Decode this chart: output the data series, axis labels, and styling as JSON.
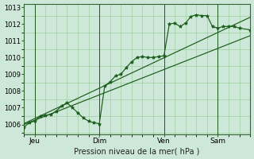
{
  "bg_color": "#cde8d8",
  "grid_color": "#99cc99",
  "line_color": "#1a5c1a",
  "marker_color": "#1a5c1a",
  "xlabel": "Pression niveau de la mer( hPa )",
  "xlim": [
    0,
    84
  ],
  "ylim": [
    1005.4,
    1013.2
  ],
  "yticks": [
    1006,
    1007,
    1008,
    1009,
    1010,
    1011,
    1012,
    1013
  ],
  "day_ticks": [
    {
      "x": 4,
      "label": "Jeu"
    },
    {
      "x": 28,
      "label": "Dim"
    },
    {
      "x": 52,
      "label": "Ven"
    },
    {
      "x": 72,
      "label": "Sam"
    }
  ],
  "trend1_x": [
    0,
    84
  ],
  "trend1_y": [
    1006.0,
    1011.3
  ],
  "trend2_x": [
    0,
    84
  ],
  "trend2_y": [
    1006.05,
    1012.4
  ],
  "jagged_x": [
    0,
    2,
    4,
    6,
    8,
    10,
    12,
    14,
    16,
    18,
    20,
    22,
    24,
    26,
    28,
    30,
    32,
    34,
    36,
    38,
    40,
    42,
    44,
    46,
    48,
    50,
    52,
    54,
    56,
    58,
    60,
    62,
    64,
    66,
    68,
    70,
    72,
    74,
    76,
    78,
    80,
    84
  ],
  "jagged_y": [
    1005.85,
    1006.1,
    1006.2,
    1006.5,
    1006.55,
    1006.6,
    1006.8,
    1007.1,
    1007.3,
    1007.0,
    1006.7,
    1006.4,
    1006.2,
    1006.1,
    1006.05,
    1008.3,
    1008.55,
    1008.9,
    1009.0,
    1009.4,
    1009.75,
    1010.0,
    1010.05,
    1010.0,
    1010.0,
    1010.05,
    1010.1,
    1012.0,
    1012.05,
    1011.85,
    1012.05,
    1012.45,
    1012.55,
    1012.5,
    1012.5,
    1011.85,
    1011.75,
    1011.85,
    1011.85,
    1011.85,
    1011.75,
    1011.65
  ]
}
